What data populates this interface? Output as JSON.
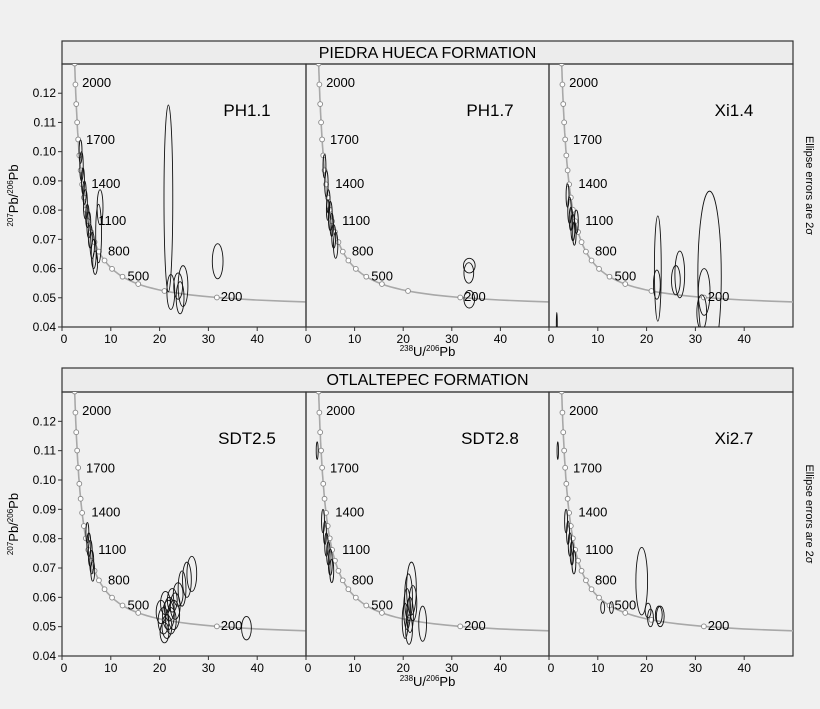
{
  "chart_data": [
    {
      "type": "scatter",
      "title": "PIEDRA HUECA FORMATION",
      "side_note": "Ellipse errors are 2σ",
      "xlabel_parts": {
        "pre": "",
        "sup1": "238",
        "mid": "U/",
        "sup2": "206",
        "post": "Pb"
      },
      "ylabel_parts": {
        "pre": "",
        "sup1": "207",
        "mid": "Pb/",
        "sup2": "206",
        "post": "Pb"
      },
      "xlim": [
        0,
        50
      ],
      "ylim": [
        0.04,
        0.13
      ],
      "x_ticks": [
        "0",
        "10",
        "20",
        "30",
        "40"
      ],
      "y_ticks": [
        "0.04",
        "0.05",
        "0.06",
        "0.07",
        "0.08",
        "0.09",
        "0.10",
        "0.11",
        "0.12"
      ],
      "concordia_age_labels": [
        {
          "age": "2000",
          "x": 3.1,
          "y": 0.1235
        },
        {
          "age": "1700",
          "x": 3.9,
          "y": 0.104
        },
        {
          "age": "1400",
          "x": 5.0,
          "y": 0.089
        },
        {
          "age": "1100",
          "x": 6.4,
          "y": 0.0762
        },
        {
          "age": "800",
          "x": 8.4,
          "y": 0.0658
        },
        {
          "age": "500",
          "x": 12.4,
          "y": 0.0572
        },
        {
          "age": "200",
          "x": 31.5,
          "y": 0.0502
        }
      ],
      "panels": [
        {
          "sample": "PH1.1",
          "ellipses": [
            {
              "x": 3.8,
              "y": 0.1,
              "rx": 0.3,
              "ry": 0.004
            },
            {
              "x": 4.0,
              "y": 0.095,
              "rx": 0.35,
              "ry": 0.005
            },
            {
              "x": 4.3,
              "y": 0.09,
              "rx": 0.3,
              "ry": 0.0045
            },
            {
              "x": 4.6,
              "y": 0.086,
              "rx": 0.35,
              "ry": 0.004
            },
            {
              "x": 4.8,
              "y": 0.082,
              "rx": 0.4,
              "ry": 0.005
            },
            {
              "x": 5.2,
              "y": 0.078,
              "rx": 0.35,
              "ry": 0.004
            },
            {
              "x": 5.5,
              "y": 0.075,
              "rx": 0.4,
              "ry": 0.0045
            },
            {
              "x": 5.8,
              "y": 0.071,
              "rx": 0.4,
              "ry": 0.004
            },
            {
              "x": 6.2,
              "y": 0.068,
              "rx": 0.45,
              "ry": 0.0045
            },
            {
              "x": 6.5,
              "y": 0.065,
              "rx": 0.5,
              "ry": 0.005
            },
            {
              "x": 6.8,
              "y": 0.062,
              "rx": 0.5,
              "ry": 0.004
            },
            {
              "x": 7.5,
              "y": 0.072,
              "rx": 0.6,
              "ry": 0.01
            },
            {
              "x": 7.8,
              "y": 0.081,
              "rx": 0.6,
              "ry": 0.006
            },
            {
              "x": 21.8,
              "y": 0.084,
              "rx": 0.9,
              "ry": 0.032
            },
            {
              "x": 22.3,
              "y": 0.052,
              "rx": 0.8,
              "ry": 0.006
            },
            {
              "x": 23.8,
              "y": 0.054,
              "rx": 0.9,
              "ry": 0.0045
            },
            {
              "x": 24.2,
              "y": 0.05,
              "rx": 0.8,
              "ry": 0.0055
            },
            {
              "x": 24.8,
              "y": 0.054,
              "rx": 1.0,
              "ry": 0.007
            },
            {
              "x": 31.9,
              "y": 0.0625,
              "rx": 1.1,
              "ry": 0.006
            }
          ]
        },
        {
          "sample": "PH1.7",
          "ellipses": [
            {
              "x": 3.8,
              "y": 0.095,
              "rx": 0.3,
              "ry": 0.004
            },
            {
              "x": 4.2,
              "y": 0.089,
              "rx": 0.35,
              "ry": 0.0045
            },
            {
              "x": 4.6,
              "y": 0.083,
              "rx": 0.35,
              "ry": 0.004
            },
            {
              "x": 5.0,
              "y": 0.078,
              "rx": 0.4,
              "ry": 0.005
            },
            {
              "x": 5.3,
              "y": 0.075,
              "rx": 0.35,
              "ry": 0.004
            },
            {
              "x": 5.7,
              "y": 0.071,
              "rx": 0.4,
              "ry": 0.004
            },
            {
              "x": 6.1,
              "y": 0.068,
              "rx": 0.45,
              "ry": 0.0045
            },
            {
              "x": 4.5,
              "y": 0.08,
              "rx": 0.3,
              "ry": 0.0035
            },
            {
              "x": 33.6,
              "y": 0.061,
              "rx": 1.2,
              "ry": 0.0025
            },
            {
              "x": 33.5,
              "y": 0.0585,
              "rx": 1.0,
              "ry": 0.0035
            },
            {
              "x": 33.6,
              "y": 0.0495,
              "rx": 1.1,
              "ry": 0.003
            }
          ]
        },
        {
          "sample": "Xi1.4",
          "ellipses": [
            {
              "x": 1.6,
              "y": 0.041,
              "rx": 0.1,
              "ry": 0.004
            },
            {
              "x": 3.8,
              "y": 0.085,
              "rx": 0.3,
              "ry": 0.004
            },
            {
              "x": 4.2,
              "y": 0.08,
              "rx": 0.35,
              "ry": 0.0045
            },
            {
              "x": 4.5,
              "y": 0.077,
              "rx": 0.35,
              "ry": 0.004
            },
            {
              "x": 4.9,
              "y": 0.074,
              "rx": 0.4,
              "ry": 0.0045
            },
            {
              "x": 5.2,
              "y": 0.072,
              "rx": 0.35,
              "ry": 0.004
            },
            {
              "x": 5.6,
              "y": 0.076,
              "rx": 0.4,
              "ry": 0.004
            },
            {
              "x": 22.1,
              "y": 0.0545,
              "rx": 0.7,
              "ry": 0.005
            },
            {
              "x": 22.3,
              "y": 0.06,
              "rx": 0.7,
              "ry": 0.018
            },
            {
              "x": 26.0,
              "y": 0.056,
              "rx": 0.9,
              "ry": 0.005
            },
            {
              "x": 26.8,
              "y": 0.058,
              "rx": 1.0,
              "ry": 0.008
            },
            {
              "x": 31.8,
              "y": 0.052,
              "rx": 1.2,
              "ry": 0.008
            },
            {
              "x": 31.3,
              "y": 0.045,
              "rx": 1.0,
              "ry": 0.006
            },
            {
              "x": 32.9,
              "y": 0.0575,
              "rx": 2.4,
              "ry": 0.029
            }
          ]
        }
      ]
    },
    {
      "type": "scatter",
      "title": "OTLALTEPEC FORMATION",
      "side_note": "Ellipse errors are 2σ",
      "xlabel_parts": {
        "pre": "",
        "sup1": "238",
        "mid": "U/",
        "sup2": "206",
        "post": "Pb"
      },
      "ylabel_parts": {
        "pre": "",
        "sup1": "207",
        "mid": "Pb/",
        "sup2": "206",
        "post": "Pb"
      },
      "xlim": [
        0,
        50
      ],
      "ylim": [
        0.04,
        0.13
      ],
      "x_ticks": [
        "0",
        "10",
        "20",
        "30",
        "40"
      ],
      "y_ticks": [
        "0.04",
        "0.05",
        "0.06",
        "0.07",
        "0.08",
        "0.09",
        "0.10",
        "0.11",
        "0.12"
      ],
      "concordia_age_labels": [
        {
          "age": "2000",
          "x": 3.1,
          "y": 0.1235
        },
        {
          "age": "1700",
          "x": 3.9,
          "y": 0.104
        },
        {
          "age": "1400",
          "x": 5.0,
          "y": 0.089
        },
        {
          "age": "1100",
          "x": 6.4,
          "y": 0.0762
        },
        {
          "age": "800",
          "x": 8.4,
          "y": 0.0658
        },
        {
          "age": "500",
          "x": 12.4,
          "y": 0.0572
        },
        {
          "age": "200",
          "x": 31.5,
          "y": 0.0502
        }
      ],
      "panels": [
        {
          "sample": "SDT2.5",
          "ellipses": [
            {
              "x": 5.2,
              "y": 0.082,
              "rx": 0.3,
              "ry": 0.0035
            },
            {
              "x": 5.5,
              "y": 0.078,
              "rx": 0.4,
              "ry": 0.004
            },
            {
              "x": 5.8,
              "y": 0.075,
              "rx": 0.4,
              "ry": 0.0045
            },
            {
              "x": 6.1,
              "y": 0.072,
              "rx": 0.4,
              "ry": 0.004
            },
            {
              "x": 6.3,
              "y": 0.069,
              "rx": 0.4,
              "ry": 0.0035
            },
            {
              "x": 20.3,
              "y": 0.055,
              "rx": 1.0,
              "ry": 0.004
            },
            {
              "x": 20.8,
              "y": 0.052,
              "rx": 1.1,
              "ry": 0.0045
            },
            {
              "x": 21.2,
              "y": 0.058,
              "rx": 1.0,
              "ry": 0.004
            },
            {
              "x": 21.5,
              "y": 0.05,
              "rx": 1.0,
              "ry": 0.004
            },
            {
              "x": 21.8,
              "y": 0.054,
              "rx": 1.2,
              "ry": 0.005
            },
            {
              "x": 22.0,
              "y": 0.056,
              "rx": 1.0,
              "ry": 0.004
            },
            {
              "x": 22.3,
              "y": 0.052,
              "rx": 1.1,
              "ry": 0.0045
            },
            {
              "x": 22.6,
              "y": 0.059,
              "rx": 1.0,
              "ry": 0.004
            },
            {
              "x": 22.9,
              "y": 0.054,
              "rx": 1.2,
              "ry": 0.005
            },
            {
              "x": 23.2,
              "y": 0.057,
              "rx": 1.0,
              "ry": 0.0045
            },
            {
              "x": 21.0,
              "y": 0.048,
              "rx": 0.9,
              "ry": 0.0035
            },
            {
              "x": 23.8,
              "y": 0.061,
              "rx": 1.0,
              "ry": 0.004
            },
            {
              "x": 24.6,
              "y": 0.063,
              "rx": 0.8,
              "ry": 0.006
            },
            {
              "x": 25.6,
              "y": 0.066,
              "rx": 0.9,
              "ry": 0.006
            },
            {
              "x": 26.6,
              "y": 0.068,
              "rx": 1.0,
              "ry": 0.006
            },
            {
              "x": 37.8,
              "y": 0.0495,
              "rx": 1.0,
              "ry": 0.004
            }
          ]
        },
        {
          "sample": "SDT2.8",
          "ellipses": [
            {
              "x": 2.3,
              "y": 0.11,
              "rx": 0.2,
              "ry": 0.003
            },
            {
              "x": 3.5,
              "y": 0.086,
              "rx": 0.3,
              "ry": 0.004
            },
            {
              "x": 3.9,
              "y": 0.082,
              "rx": 0.3,
              "ry": 0.004
            },
            {
              "x": 4.2,
              "y": 0.078,
              "rx": 0.35,
              "ry": 0.004
            },
            {
              "x": 4.6,
              "y": 0.075,
              "rx": 0.35,
              "ry": 0.004
            },
            {
              "x": 5.0,
              "y": 0.072,
              "rx": 0.4,
              "ry": 0.0045
            },
            {
              "x": 5.3,
              "y": 0.069,
              "rx": 0.4,
              "ry": 0.004
            },
            {
              "x": 20.4,
              "y": 0.052,
              "rx": 0.6,
              "ry": 0.006
            },
            {
              "x": 20.8,
              "y": 0.056,
              "rx": 0.7,
              "ry": 0.007
            },
            {
              "x": 21.1,
              "y": 0.06,
              "rx": 0.8,
              "ry": 0.008
            },
            {
              "x": 21.4,
              "y": 0.054,
              "rx": 0.7,
              "ry": 0.006
            },
            {
              "x": 21.7,
              "y": 0.063,
              "rx": 1.0,
              "ry": 0.009
            },
            {
              "x": 22.0,
              "y": 0.058,
              "rx": 0.8,
              "ry": 0.006
            },
            {
              "x": 21.2,
              "y": 0.049,
              "rx": 0.7,
              "ry": 0.005
            },
            {
              "x": 24.0,
              "y": 0.051,
              "rx": 0.8,
              "ry": 0.006
            }
          ]
        },
        {
          "sample": "Xi2.7",
          "ellipses": [
            {
              "x": 1.8,
              "y": 0.11,
              "rx": 0.15,
              "ry": 0.003
            },
            {
              "x": 3.5,
              "y": 0.086,
              "rx": 0.3,
              "ry": 0.004
            },
            {
              "x": 3.9,
              "y": 0.082,
              "rx": 0.3,
              "ry": 0.004
            },
            {
              "x": 4.3,
              "y": 0.078,
              "rx": 0.35,
              "ry": 0.004
            },
            {
              "x": 4.7,
              "y": 0.075,
              "rx": 0.35,
              "ry": 0.004
            },
            {
              "x": 5.1,
              "y": 0.072,
              "rx": 0.4,
              "ry": 0.004
            },
            {
              "x": 11.0,
              "y": 0.0565,
              "rx": 0.4,
              "ry": 0.002
            },
            {
              "x": 12.8,
              "y": 0.0565,
              "rx": 0.4,
              "ry": 0.002
            },
            {
              "x": 19.0,
              "y": 0.0655,
              "rx": 1.2,
              "ry": 0.0115
            },
            {
              "x": 20.3,
              "y": 0.0555,
              "rx": 0.6,
              "ry": 0.0025
            },
            {
              "x": 20.8,
              "y": 0.053,
              "rx": 0.6,
              "ry": 0.003
            },
            {
              "x": 22.5,
              "y": 0.054,
              "rx": 0.7,
              "ry": 0.003
            },
            {
              "x": 22.8,
              "y": 0.0535,
              "rx": 0.8,
              "ry": 0.0035
            }
          ]
        }
      ]
    }
  ]
}
